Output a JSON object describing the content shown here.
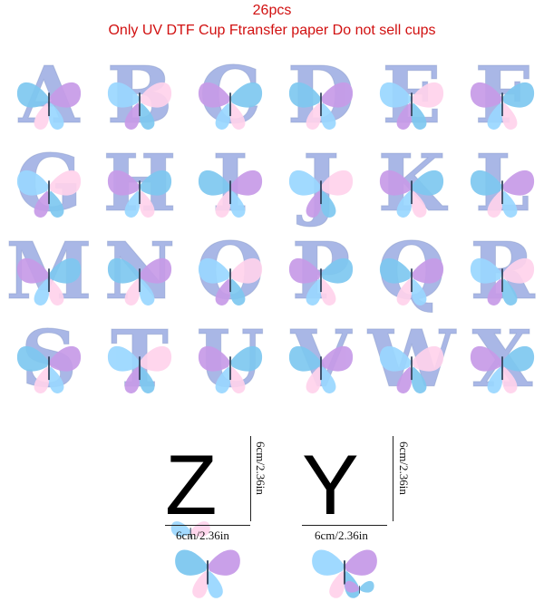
{
  "header": {
    "count": "26pcs",
    "note": "Only UV DTF Cup Ftransfer paper  Do not sell cups"
  },
  "colors": {
    "header_text": "#d11010",
    "letter_fill": "#a9b7e6",
    "butterfly_a": "#7ec8f0",
    "butterfly_b": "#c79be8",
    "butterfly_c": "#ffd3ec"
  },
  "letters": {
    "row1": [
      "A",
      "B",
      "C",
      "D",
      "E",
      "F"
    ],
    "row2": [
      "G",
      "H",
      "I",
      "J",
      "K",
      "L"
    ],
    "row3": [
      "M",
      "N",
      "O",
      "P",
      "Q",
      "R"
    ],
    "row4": [
      "S",
      "T",
      "U",
      "V",
      "W",
      "X"
    ],
    "row5": [
      "Z",
      "Y"
    ]
  },
  "dimensions": {
    "z_height": "6cm/2.36in",
    "z_width": "6cm/2.36in",
    "y_height": "6cm/2.36in",
    "y_width": "6cm/2.36in"
  },
  "icons": {
    "butterfly": "butterfly-icon"
  }
}
